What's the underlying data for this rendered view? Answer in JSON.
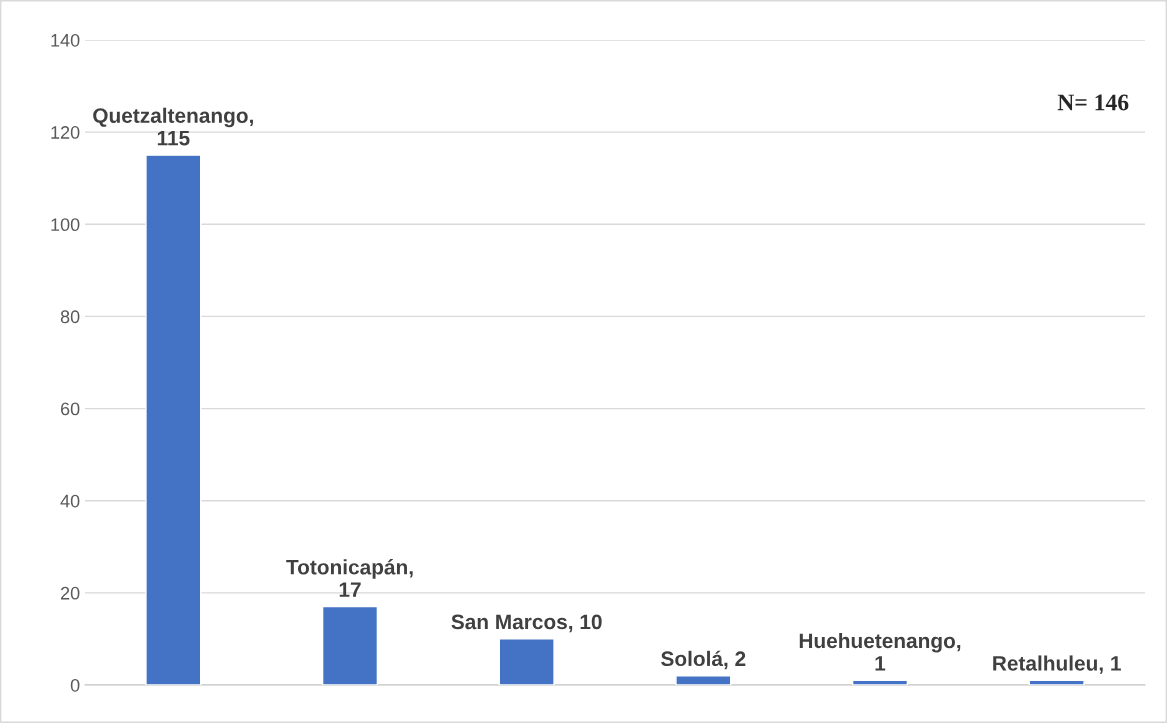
{
  "chart_data": {
    "type": "bar",
    "categories": [
      null,
      null,
      null,
      null,
      null,
      null
    ],
    "values": [
      115,
      17,
      10,
      2,
      1,
      1
    ],
    "value_labels": [
      "Quetzaltenango,\n115",
      "Totonicapán,\n17",
      "San Marcos, 10",
      "Sololá, 2",
      "Huehuetenango,\n1",
      "Retalhuleu, 1"
    ],
    "color": "#4472c4",
    "ylim": [
      0,
      140
    ],
    "yticks": [
      0,
      20,
      40,
      60,
      80,
      100,
      120,
      140
    ],
    "grid": "y",
    "tick_labels": "y",
    "legend": false,
    "annotations": [
      "N= 146"
    ]
  }
}
